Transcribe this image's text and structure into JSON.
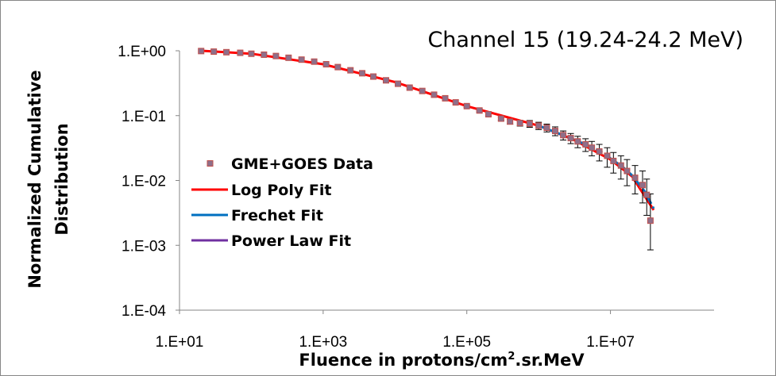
{
  "chart_data": {
    "type": "scatter",
    "title": "Channel 15 (19.24-24.2 MeV)",
    "xlabel_main": "Fluence in protons/cm",
    "xlabel_sup": "2",
    "xlabel_tail": ".sr.MeV",
    "ylabel_line1": "Normalized Cumulative",
    "ylabel_line2": "Distribution",
    "x_scale": "log",
    "y_scale": "log",
    "xlim": [
      10,
      100000000.0
    ],
    "ylim": [
      0.0001,
      1
    ],
    "x_ticks": [
      {
        "value": 10,
        "label": "1.E+01"
      },
      {
        "value": 1000,
        "label": "1.E+03"
      },
      {
        "value": 100000,
        "label": "1.E+05"
      },
      {
        "value": 10000000,
        "label": "1.E+07"
      }
    ],
    "y_ticks": [
      {
        "value": 1,
        "label": "1.E+00"
      },
      {
        "value": 0.1,
        "label": "1.E-01"
      },
      {
        "value": 0.01,
        "label": "1.E-02"
      },
      {
        "value": 0.001,
        "label": "1.E-03"
      },
      {
        "value": 0.0001,
        "label": "1.E-04"
      }
    ],
    "grid": false,
    "legend_position": "left",
    "colors": {
      "data": "#8f6f8a",
      "data_fill": "#c0504d",
      "log_poly": "#ff0000",
      "frechet": "#0070c0",
      "power_law": "#7030a0",
      "error_bar": "#000000"
    },
    "series": [
      {
        "name": "GME+GOES Data",
        "kind": "points",
        "x": [
          20,
          30,
          45,
          70,
          100,
          150,
          220,
          330,
          500,
          750,
          1100,
          1600,
          2400,
          3500,
          5000,
          7500,
          11000,
          16000,
          24000,
          35000,
          50000,
          70000,
          100000,
          150000,
          200000,
          300000,
          400000,
          550000,
          750000,
          1000000,
          1300000,
          1700000,
          2200000,
          2800000,
          3500000,
          4500000,
          5500000,
          7000000,
          9000000,
          11000000,
          14000000,
          17000000,
          22000000,
          28000000,
          32000000,
          36000000
        ],
        "y": [
          0.99,
          0.97,
          0.95,
          0.93,
          0.9,
          0.87,
          0.83,
          0.78,
          0.73,
          0.68,
          0.62,
          0.56,
          0.5,
          0.45,
          0.4,
          0.35,
          0.31,
          0.27,
          0.24,
          0.21,
          0.185,
          0.16,
          0.14,
          0.12,
          0.105,
          0.09,
          0.081,
          0.077,
          0.075,
          0.07,
          0.065,
          0.058,
          0.05,
          0.045,
          0.04,
          0.036,
          0.032,
          0.028,
          0.024,
          0.02,
          0.017,
          0.014,
          0.011,
          0.0085,
          0.006,
          0.0024
        ],
        "err_low": [
          0.99,
          0.97,
          0.95,
          0.93,
          0.9,
          0.87,
          0.83,
          0.78,
          0.73,
          0.68,
          0.62,
          0.56,
          0.5,
          0.45,
          0.4,
          0.35,
          0.31,
          0.27,
          0.24,
          0.21,
          0.18,
          0.155,
          0.134,
          0.114,
          0.099,
          0.084,
          0.074,
          0.069,
          0.066,
          0.061,
          0.056,
          0.049,
          0.042,
          0.037,
          0.032,
          0.028,
          0.024,
          0.02,
          0.016,
          0.013,
          0.0105,
          0.0083,
          0.0062,
          0.0045,
          0.0029,
          0.00085
        ],
        "err_high": [
          0.99,
          0.97,
          0.95,
          0.93,
          0.9,
          0.87,
          0.83,
          0.78,
          0.73,
          0.68,
          0.62,
          0.56,
          0.5,
          0.45,
          0.4,
          0.35,
          0.31,
          0.27,
          0.24,
          0.21,
          0.19,
          0.165,
          0.146,
          0.126,
          0.111,
          0.096,
          0.088,
          0.085,
          0.084,
          0.079,
          0.074,
          0.067,
          0.058,
          0.053,
          0.048,
          0.044,
          0.04,
          0.036,
          0.032,
          0.027,
          0.024,
          0.021,
          0.017,
          0.014,
          0.0105,
          0.0062
        ]
      },
      {
        "name": "Log Poly Fit",
        "kind": "line",
        "x": [
          20,
          100,
          1000,
          10000,
          100000,
          1000000,
          3000000,
          10000000,
          20000000,
          40000000
        ],
        "y": [
          1.0,
          0.9,
          0.62,
          0.33,
          0.14,
          0.07,
          0.043,
          0.021,
          0.0115,
          0.0035
        ]
      },
      {
        "name": "Frechet Fit",
        "kind": "line",
        "x": [
          1000000,
          2000000,
          4000000,
          7000000,
          10000000,
          15000000,
          20000000,
          30000000,
          40000000
        ],
        "y": [
          0.07,
          0.052,
          0.038,
          0.029,
          0.022,
          0.016,
          0.012,
          0.0068,
          0.0037
        ]
      },
      {
        "name": "Power Law Fit",
        "kind": "line",
        "x": [],
        "y": []
      }
    ]
  }
}
